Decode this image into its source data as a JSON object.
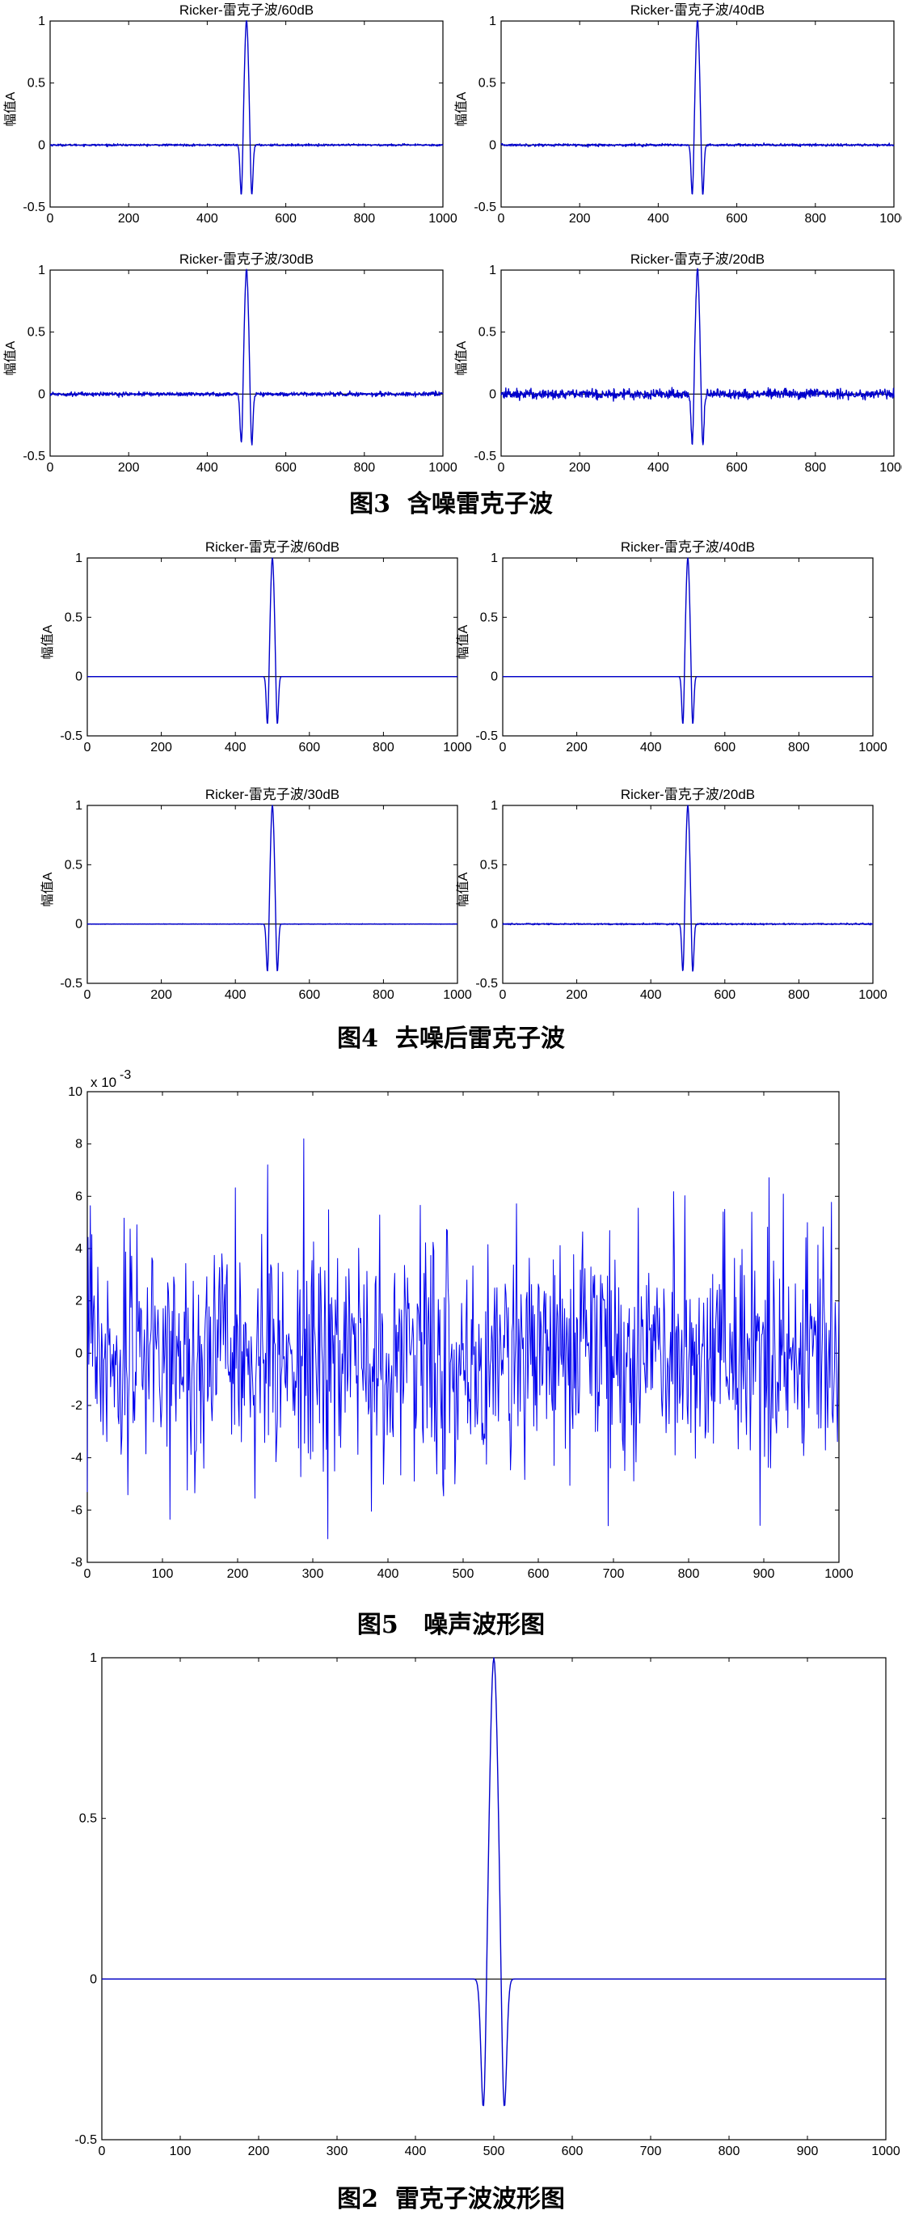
{
  "figures": [
    {
      "caption": "图3  含噪雷克子波",
      "chart_ids": [
        0,
        1,
        2,
        3
      ]
    },
    {
      "caption": "图4  去噪后雷克子波",
      "chart_ids": [
        4,
        5,
        6,
        7
      ]
    },
    {
      "caption": "图5   噪声波形图",
      "chart_ids": [
        8
      ]
    },
    {
      "caption": "图2  雷克子波波形图",
      "chart_ids": [
        9
      ]
    }
  ],
  "colors": {
    "trace": "#0000cc",
    "noise": "#0000ee",
    "baseline": "#000000"
  },
  "chart_data": [
    {
      "type": "line",
      "title": "Ricker-雷克子波/60dB",
      "ylabel": "幅值A",
      "xlim": [
        0,
        1000
      ],
      "ylim": [
        -0.5,
        1
      ],
      "xticks": [
        "0",
        "200",
        "400",
        "600",
        "800",
        "1000"
      ],
      "yticks": [
        "-0.5",
        "0",
        "0.5",
        "1"
      ],
      "series": [
        {
          "peak_x": 500,
          "peak_y": 1.0,
          "trough1_x": 487,
          "trough1_y": -0.45,
          "trough2_x": 513,
          "trough2_y": -0.45
        }
      ],
      "noise_level": 0.004
    },
    {
      "type": "line",
      "title": "Ricker-雷克子波/40dB",
      "ylabel": "幅值A",
      "xlim": [
        0,
        1000
      ],
      "ylim": [
        -0.5,
        1
      ],
      "xticks": [
        "0",
        "200",
        "400",
        "600",
        "800",
        "1000"
      ],
      "yticks": [
        "-0.5",
        "0",
        "0.5",
        "1"
      ],
      "series": [
        {
          "peak_x": 500,
          "peak_y": 1.0,
          "trough1_x": 487,
          "trough1_y": -0.45,
          "trough2_x": 513,
          "trough2_y": -0.45
        }
      ],
      "noise_level": 0.005
    },
    {
      "type": "line",
      "title": "Ricker-雷克子波/30dB",
      "ylabel": "幅值A",
      "xlim": [
        0,
        1000
      ],
      "ylim": [
        -0.5,
        1
      ],
      "xticks": [
        "0",
        "200",
        "400",
        "600",
        "800",
        "1000"
      ],
      "yticks": [
        "-0.5",
        "0",
        "0.5",
        "1"
      ],
      "series": [
        {
          "peak_x": 500,
          "peak_y": 1.0,
          "trough1_x": 487,
          "trough1_y": -0.45,
          "trough2_x": 513,
          "trough2_y": -0.45
        }
      ],
      "noise_level": 0.008
    },
    {
      "type": "line",
      "title": "Ricker-雷克子波/20dB",
      "ylabel": "幅值A",
      "xlim": [
        0,
        1000
      ],
      "ylim": [
        -0.5,
        1
      ],
      "xticks": [
        "0",
        "200",
        "400",
        "600",
        "800",
        "1000"
      ],
      "yticks": [
        "-0.5",
        "0",
        "0.5",
        "1"
      ],
      "series": [
        {
          "peak_x": 500,
          "peak_y": 1.0,
          "trough1_x": 487,
          "trough1_y": -0.45,
          "trough2_x": 513,
          "trough2_y": -0.45
        }
      ],
      "noise_level": 0.02
    },
    {
      "type": "line",
      "title": "Ricker-雷克子波/60dB",
      "ylabel": "幅值A",
      "xlim": [
        0,
        1000
      ],
      "ylim": [
        -0.5,
        1
      ],
      "xticks": [
        "0",
        "200",
        "400",
        "600",
        "800",
        "1000"
      ],
      "yticks": [
        "-0.5",
        "0",
        "0.5",
        "1"
      ],
      "series": [
        {
          "peak_x": 500,
          "peak_y": 1.0,
          "trough1_x": 487,
          "trough1_y": -0.45,
          "trough2_x": 513,
          "trough2_y": -0.45
        }
      ],
      "noise_level": 0.0
    },
    {
      "type": "line",
      "title": "Ricker-雷克子波/40dB",
      "ylabel": "幅值A",
      "xlim": [
        0,
        1000
      ],
      "ylim": [
        -0.5,
        1
      ],
      "xticks": [
        "0",
        "200",
        "400",
        "600",
        "800",
        "1000"
      ],
      "yticks": [
        "-0.5",
        "0",
        "0.5",
        "1"
      ],
      "series": [
        {
          "peak_x": 500,
          "peak_y": 1.0,
          "trough1_x": 487,
          "trough1_y": -0.45,
          "trough2_x": 513,
          "trough2_y": -0.45
        }
      ],
      "noise_level": 0.0
    },
    {
      "type": "line",
      "title": "Ricker-雷克子波/30dB",
      "ylabel": "幅值A",
      "xlim": [
        0,
        1000
      ],
      "ylim": [
        -0.5,
        1
      ],
      "xticks": [
        "0",
        "200",
        "400",
        "600",
        "800",
        "1000"
      ],
      "yticks": [
        "-0.5",
        "0",
        "0.5",
        "1"
      ],
      "series": [
        {
          "peak_x": 500,
          "peak_y": 1.0,
          "trough1_x": 487,
          "trough1_y": -0.45,
          "trough2_x": 513,
          "trough2_y": -0.45
        }
      ],
      "noise_level": 0.001
    },
    {
      "type": "line",
      "title": "Ricker-雷克子波/20dB",
      "ylabel": "幅值A",
      "xlim": [
        0,
        1000
      ],
      "ylim": [
        -0.5,
        1
      ],
      "xticks": [
        "0",
        "200",
        "400",
        "600",
        "800",
        "1000"
      ],
      "yticks": [
        "-0.5",
        "0",
        "0.5",
        "1"
      ],
      "series": [
        {
          "peak_x": 500,
          "peak_y": 1.0,
          "trough1_x": 487,
          "trough1_y": -0.45,
          "trough2_x": 513,
          "trough2_y": -0.45
        }
      ],
      "noise_level": 0.003
    },
    {
      "type": "line",
      "title": "",
      "ylabel": "",
      "xlim": [
        0,
        1000
      ],
      "ylim": [
        -8,
        10
      ],
      "xticks": [
        "0",
        "100",
        "200",
        "300",
        "400",
        "500",
        "600",
        "700",
        "800",
        "900",
        "1000"
      ],
      "yticks": [
        "-8",
        "-6",
        "-4",
        "-2",
        "0",
        "2",
        "4",
        "6",
        "8",
        "10"
      ],
      "exponent_label": "x 10",
      "exponent": "-3",
      "series": [
        {
          "name": "",
          "sigma": 2.2,
          "max": 8.2,
          "max_x": 288,
          "min": -7.1,
          "min_x": 320
        }
      ]
    },
    {
      "type": "line",
      "title": "",
      "ylabel": "",
      "xlim": [
        0,
        1000
      ],
      "ylim": [
        -0.5,
        1
      ],
      "xticks": [
        "0",
        "100",
        "200",
        "300",
        "400",
        "500",
        "600",
        "700",
        "800",
        "900",
        "1000"
      ],
      "yticks": [
        "-0.5",
        "0",
        "0.5",
        "1"
      ],
      "series": [
        {
          "peak_x": 500,
          "peak_y": 1.0,
          "trough1_x": 487,
          "trough1_y": -0.45,
          "trough2_x": 513,
          "trough2_y": -0.45
        }
      ],
      "noise_level": 0.0
    }
  ]
}
